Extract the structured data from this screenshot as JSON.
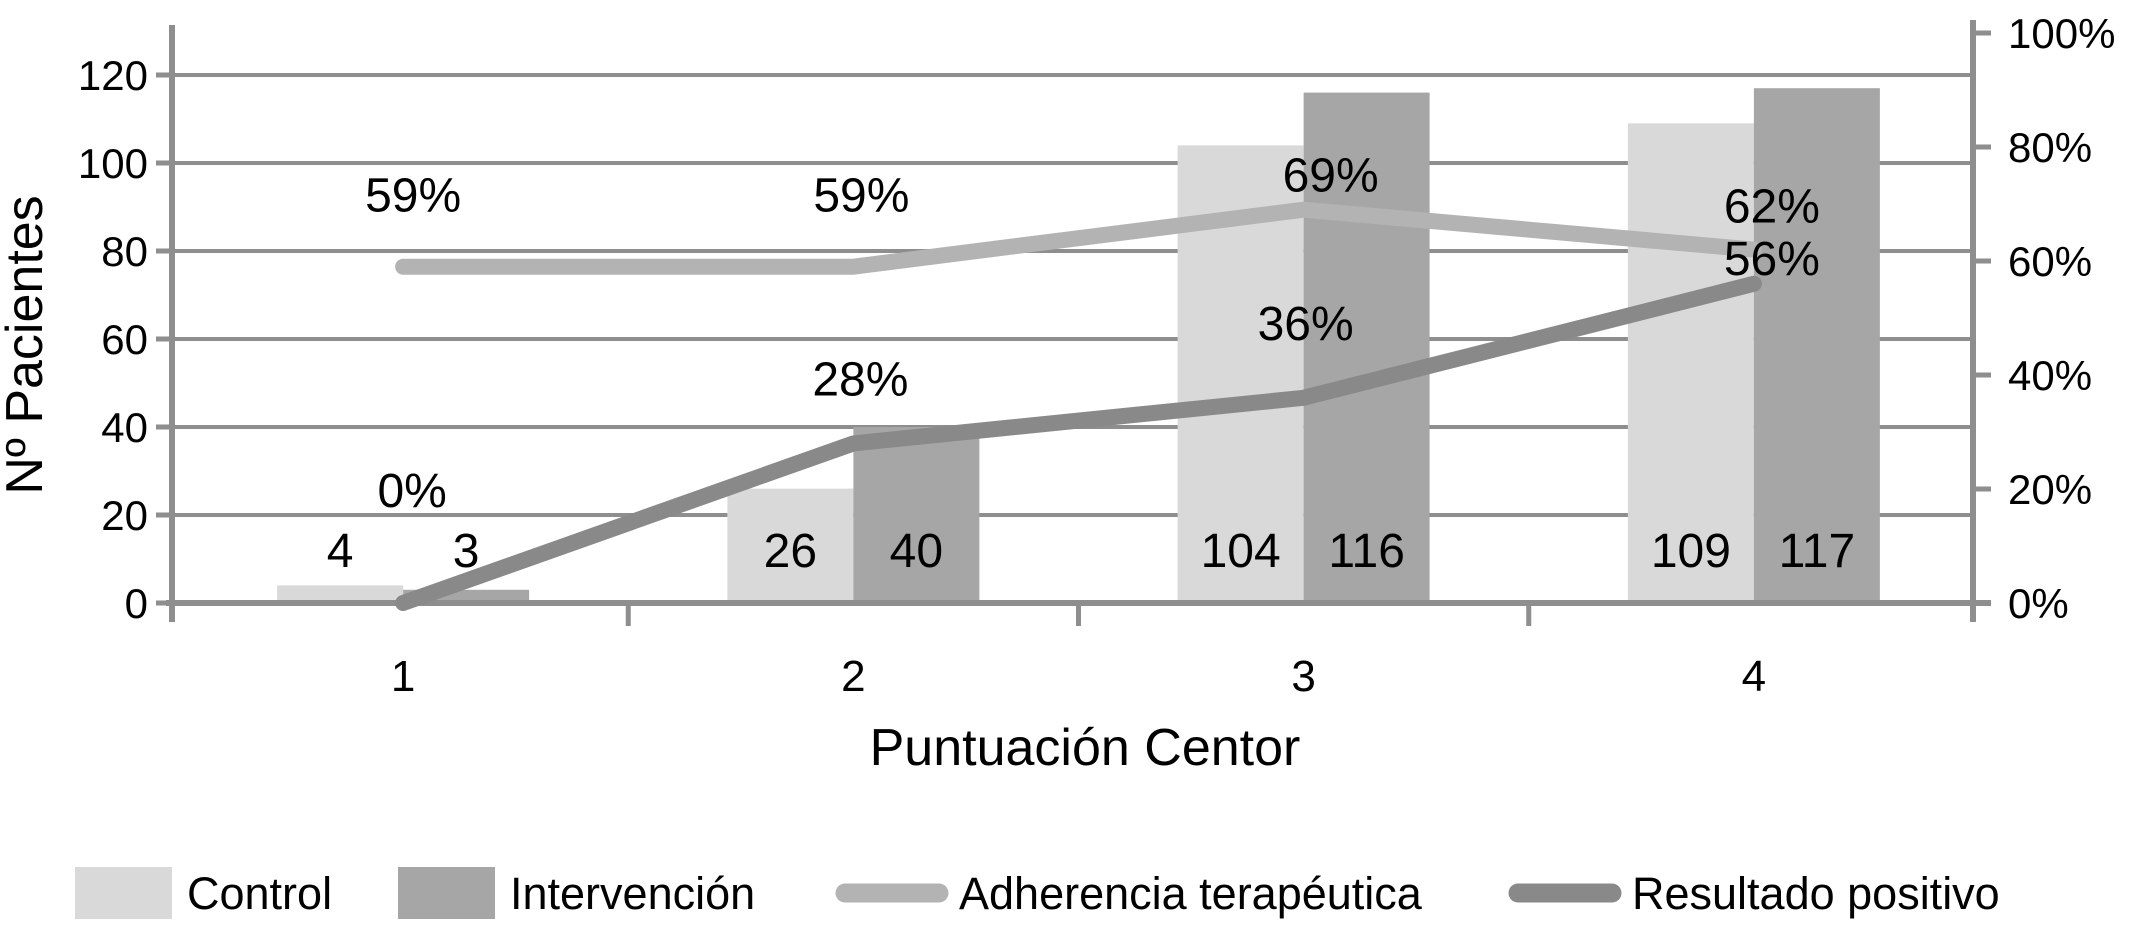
{
  "chart_data": {
    "type": "bar+line",
    "title": "",
    "categories": [
      "1",
      "2",
      "3",
      "4"
    ],
    "xlabel": "Puntuación Centor",
    "ylabel_left": "Nº Pacientes",
    "y_left": {
      "min": 0,
      "max": 120,
      "step": 20,
      "tick_labels": [
        "0",
        "20",
        "40",
        "60",
        "80",
        "100",
        "120"
      ]
    },
    "y_right": {
      "min": 0,
      "max": 100,
      "step": 20,
      "tick_labels": [
        "0%",
        "20%",
        "40%",
        "60%",
        "80%",
        "100%"
      ]
    },
    "bar_series": [
      {
        "name": "Control",
        "color": "#d9d9d9",
        "values": [
          4,
          26,
          104,
          109
        ],
        "data_labels": [
          "4",
          "26",
          "104",
          "109"
        ]
      },
      {
        "name": "Intervención",
        "color": "#a6a6a6",
        "values": [
          3,
          40,
          116,
          117
        ],
        "data_labels": [
          "3",
          "40",
          "116",
          "117"
        ]
      }
    ],
    "line_series": [
      {
        "name": "Adherencia terapéutica",
        "color": "#b3b3b3",
        "values_pct": [
          59,
          59,
          69,
          62
        ],
        "data_labels": [
          "59%",
          "59%",
          "69%",
          "62%"
        ]
      },
      {
        "name": "Resultado positivo",
        "color": "#898989",
        "values_pct": [
          0,
          28,
          36,
          56
        ],
        "data_labels": [
          "0%",
          "28%",
          "36%",
          "56%"
        ]
      }
    ],
    "grid": true,
    "legend_position": "bottom"
  },
  "legend": {
    "items": [
      {
        "label": "Control",
        "type": "bar",
        "color": "#d9d9d9"
      },
      {
        "label": "Intervención",
        "type": "bar",
        "color": "#a6a6a6"
      },
      {
        "label": "Adherencia terapéutica",
        "type": "line",
        "color": "#b3b3b3"
      },
      {
        "label": "Resultado positivo",
        "type": "line",
        "color": "#898989"
      }
    ]
  },
  "colors": {
    "grid": "#8e8e8e",
    "axis": "#8e8e8e",
    "text": "#000000",
    "background": "#ffffff"
  }
}
